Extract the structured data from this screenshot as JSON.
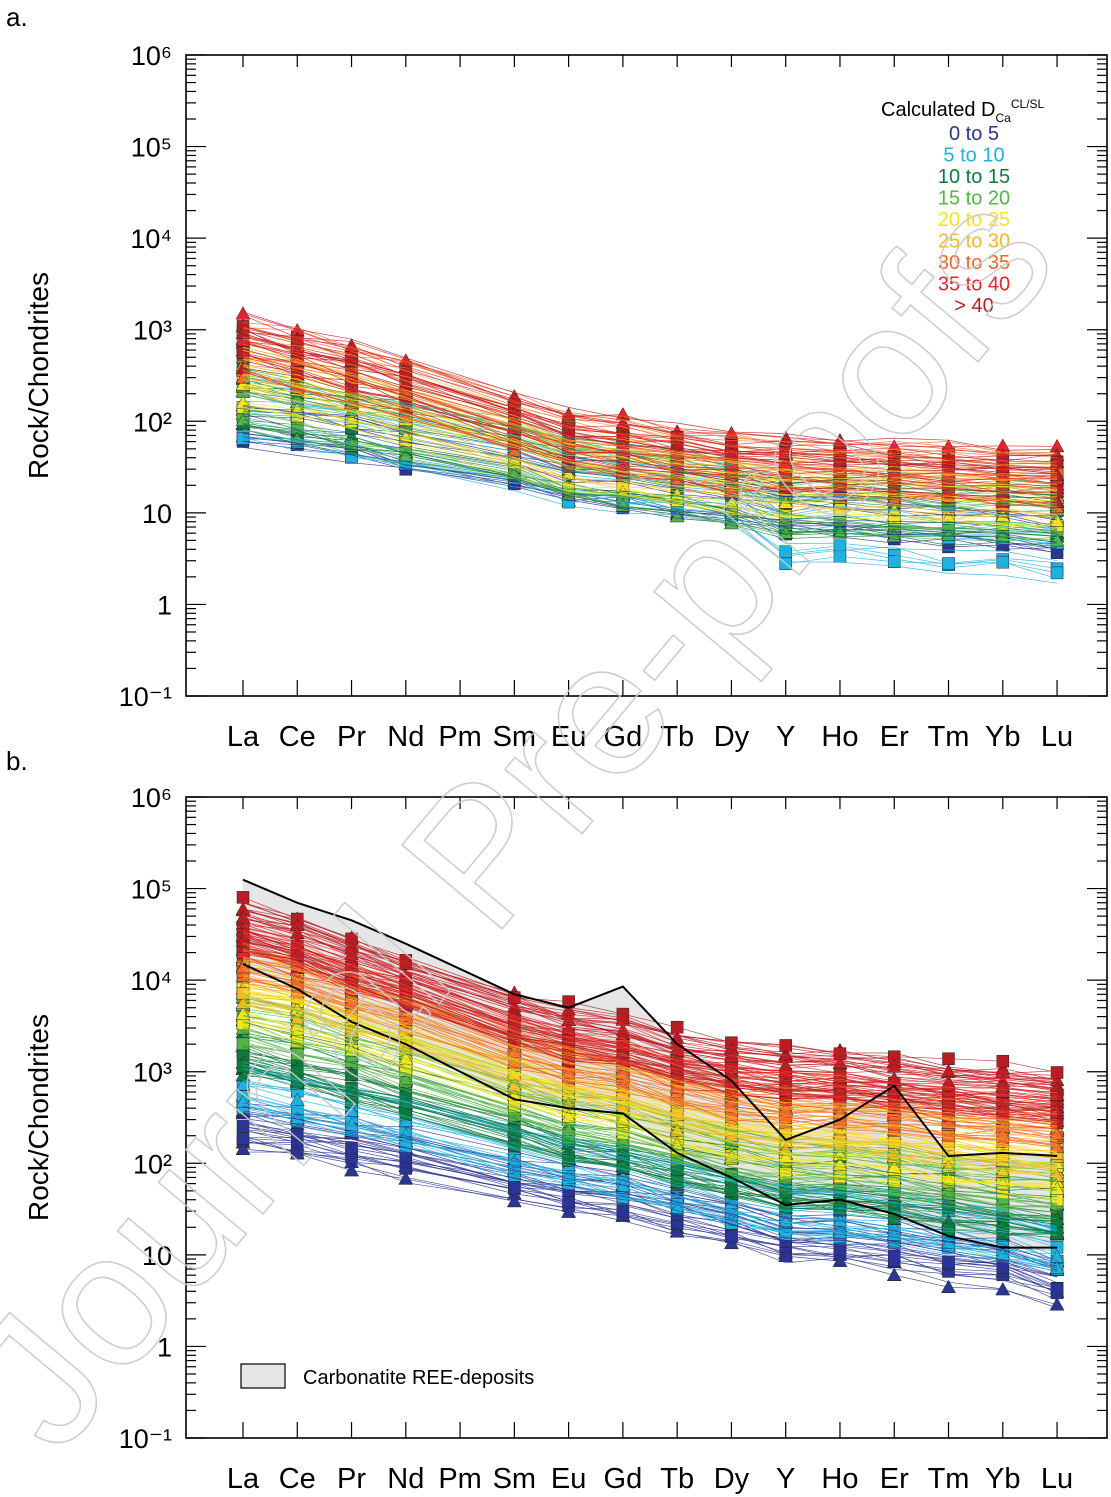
{
  "watermark": "Journal Pre-proofs",
  "colors": {
    "bin_colors": [
      "#2b3593",
      "#1fb2e0",
      "#0e7a3c",
      "#56b547",
      "#f2e620",
      "#f5b82b",
      "#f0682a",
      "#e3262b",
      "#b81d24"
    ],
    "envelope_fill": "#e6e6e6",
    "axis": "#000000"
  },
  "chart_data": [
    {
      "panel_label": "a.",
      "type": "line",
      "ylabel": "Rock/Chondrites",
      "yscale": "log",
      "ylim": [
        0.1,
        1000000
      ],
      "y_tick_labels": [
        "10⁻¹",
        "1",
        "10",
        "10²",
        "10³",
        "10⁴",
        "10⁵",
        "10⁶"
      ],
      "categories": [
        "La",
        "Ce",
        "Pr",
        "Nd",
        "Pm",
        "Sm",
        "Eu",
        "Gd",
        "Tb",
        "Dy",
        "Y",
        "Ho",
        "Er",
        "Tm",
        "Yb",
        "Lu"
      ],
      "legend": {
        "title_main": "Calculated D",
        "title_sub": "Ca",
        "title_sup": "CL/SL",
        "entries": [
          "0 to 5",
          "5 to 10",
          "10 to 15",
          "15 to 20",
          "20 to 25",
          "25 to 30",
          "30 to 35",
          "35 to 40",
          "> 40"
        ]
      },
      "series": [
        {
          "bin": "0 to 5",
          "color": "#2b3593",
          "values": [
            110,
            90,
            75,
            55,
            null,
            35,
            25,
            22,
            18,
            15,
            12,
            11,
            10,
            9,
            8,
            7
          ]
        },
        {
          "bin": "5 to 10",
          "color": "#1fb2e0",
          "values": [
            130,
            105,
            85,
            65,
            null,
            40,
            28,
            24,
            20,
            16,
            6,
            7,
            6,
            5,
            5,
            4
          ]
        },
        {
          "bin": "10 to 15",
          "color": "#0e7a3c",
          "values": [
            150,
            115,
            90,
            70,
            null,
            42,
            28,
            24,
            20,
            16,
            10,
            11,
            11,
            10,
            10,
            9
          ]
        },
        {
          "bin": "15 to 20",
          "color": "#56b547",
          "values": [
            200,
            150,
            110,
            85,
            null,
            50,
            32,
            26,
            22,
            18,
            14,
            14,
            13,
            12,
            12,
            11
          ]
        },
        {
          "bin": "20 to 25",
          "color": "#f2e620",
          "values": [
            300,
            230,
            170,
            120,
            null,
            60,
            40,
            32,
            26,
            22,
            20,
            20,
            18,
            17,
            16,
            15
          ]
        },
        {
          "bin": "25 to 30",
          "color": "#f5b82b",
          "values": [
            450,
            330,
            240,
            160,
            null,
            75,
            48,
            40,
            32,
            28,
            25,
            24,
            22,
            20,
            19,
            18
          ]
        },
        {
          "bin": "30 to 35",
          "color": "#f0682a",
          "values": [
            600,
            450,
            320,
            220,
            null,
            95,
            60,
            50,
            40,
            35,
            32,
            30,
            28,
            26,
            24,
            22
          ]
        },
        {
          "bin": "35 to 40",
          "color": "#e3262b",
          "values": [
            700,
            500,
            350,
            240,
            null,
            100,
            65,
            55,
            45,
            38,
            35,
            33,
            30,
            28,
            26,
            25
          ]
        },
        {
          "bin": "> 40",
          "color": "#b81d24",
          "values": [
            800,
            550,
            400,
            260,
            null,
            110,
            70,
            60,
            48,
            40,
            37,
            35,
            32,
            30,
            28,
            26
          ]
        }
      ]
    },
    {
      "panel_label": "b.",
      "type": "line",
      "ylabel": "Rock/Chondrites",
      "yscale": "log",
      "ylim": [
        0.1,
        1000000
      ],
      "y_tick_labels": [
        "10⁻¹",
        "1",
        "10",
        "10²",
        "10³",
        "10⁴",
        "10⁵",
        "10⁶"
      ],
      "categories": [
        "La",
        "Ce",
        "Pr",
        "Nd",
        "Pm",
        "Sm",
        "Eu",
        "Gd",
        "Tb",
        "Dy",
        "Y",
        "Ho",
        "Er",
        "Tm",
        "Yb",
        "Lu"
      ],
      "legend": {
        "entries": [
          "Carbonatite REE-deposits"
        ]
      },
      "envelope": {
        "name": "Carbonatite REE-deposits",
        "upper": [
          125000,
          70000,
          45000,
          25000,
          null,
          7000,
          5000,
          8500,
          2000,
          800,
          180,
          300,
          700,
          120,
          130,
          120
        ],
        "lower": [
          15000,
          8000,
          3500,
          2000,
          null,
          500,
          400,
          350,
          130,
          70,
          35,
          40,
          28,
          16,
          12,
          12
        ]
      },
      "series": [
        {
          "bin": "0 to 5",
          "color": "#2b3593",
          "values": [
            250,
            200,
            160,
            120,
            null,
            65,
            50,
            42,
            30,
            22,
            15,
            14,
            12,
            9,
            8,
            5
          ]
        },
        {
          "bin": "5 to 10",
          "color": "#1fb2e0",
          "values": [
            700,
            500,
            380,
            280,
            null,
            140,
            100,
            80,
            55,
            40,
            30,
            28,
            25,
            20,
            16,
            12
          ]
        },
        {
          "bin": "10 to 15",
          "color": "#0e7a3c",
          "values": [
            1800,
            1300,
            950,
            650,
            null,
            300,
            200,
            160,
            110,
            80,
            60,
            55,
            48,
            38,
            32,
            28
          ]
        },
        {
          "bin": "15 to 20",
          "color": "#56b547",
          "values": [
            3500,
            2600,
            1800,
            1200,
            null,
            500,
            330,
            260,
            180,
            130,
            100,
            95,
            80,
            65,
            55,
            50
          ]
        },
        {
          "bin": "20 to 25",
          "color": "#f2e620",
          "values": [
            6000,
            4500,
            3000,
            2000,
            null,
            800,
            550,
            420,
            280,
            200,
            160,
            150,
            130,
            110,
            95,
            85
          ]
        },
        {
          "bin": "25 to 30",
          "color": "#f5b82b",
          "values": [
            10000,
            7500,
            5000,
            3300,
            null,
            1300,
            900,
            700,
            450,
            330,
            260,
            250,
            220,
            180,
            160,
            140
          ]
        },
        {
          "bin": "30 to 35",
          "color": "#f0682a",
          "values": [
            18000,
            13000,
            8500,
            5500,
            null,
            2100,
            1500,
            1200,
            800,
            600,
            500,
            480,
            420,
            350,
            320,
            280
          ]
        },
        {
          "bin": "35 to 40",
          "color": "#e3262b",
          "values": [
            30000,
            21000,
            13000,
            8500,
            null,
            3200,
            2300,
            1800,
            1200,
            950,
            800,
            750,
            650,
            550,
            500,
            450
          ]
        },
        {
          "bin": "> 40",
          "color": "#b81d24",
          "values": [
            40000,
            28000,
            16000,
            10000,
            null,
            4000,
            2800,
            2200,
            1500,
            1200,
            1000,
            950,
            820,
            700,
            620,
            560
          ]
        }
      ]
    }
  ]
}
